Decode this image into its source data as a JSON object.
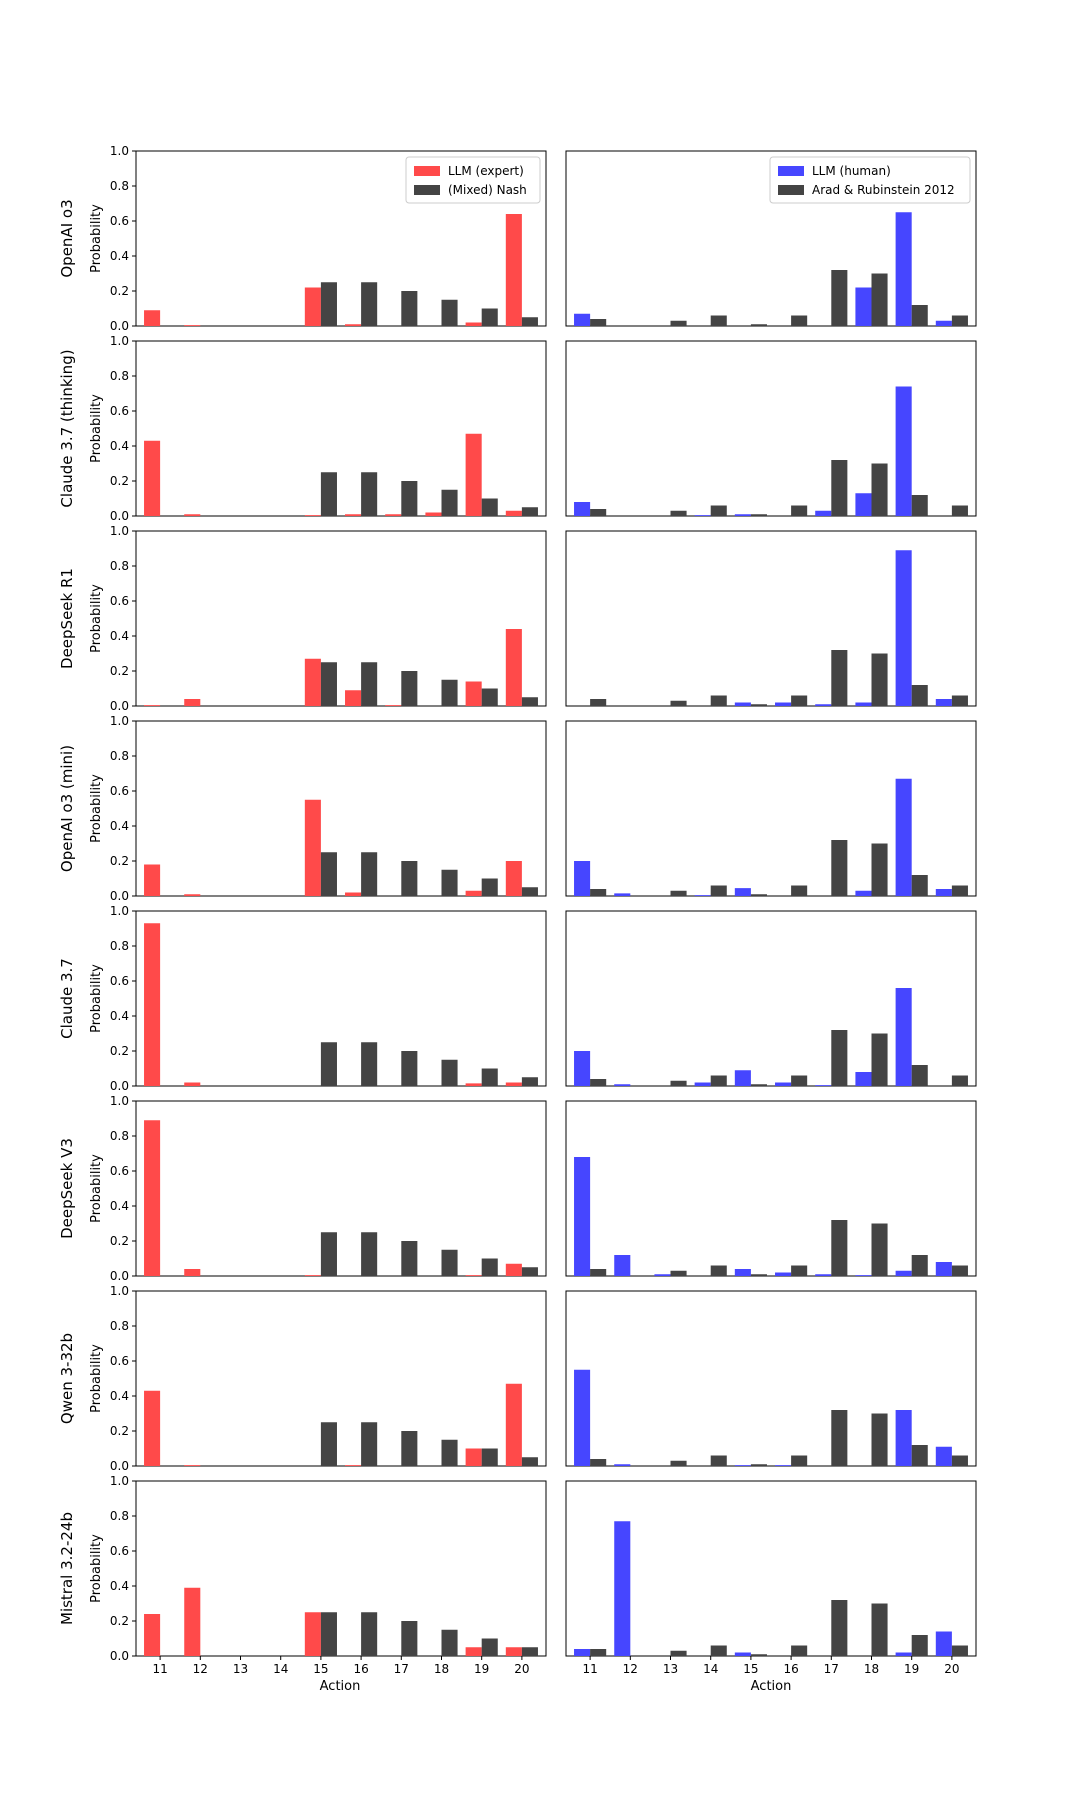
{
  "figure": {
    "shared_xlabel": "Action",
    "shared_ylabel": "Probability",
    "left_legend": [
      "LLM (expert)",
      "(Mixed) Nash"
    ],
    "right_legend": [
      "LLM (human)",
      "Arad & Rubinstein 2012"
    ]
  },
  "colors": {
    "llm_expert": "#ff4a4a",
    "llm_human": "#4646ff",
    "baseline": "#444444"
  },
  "chart_data": [
    {
      "type": "bar",
      "title": "",
      "ylabel": "Probability",
      "xlabel": "",
      "model": "OpenAI o3",
      "ylim": [
        0,
        1
      ],
      "yticks": [
        "0.0",
        "0.2",
        "0.4",
        "0.6",
        "0.8",
        "1.0"
      ],
      "categories": [
        "11",
        "12",
        "13",
        "14",
        "15",
        "16",
        "17",
        "18",
        "19",
        "20"
      ],
      "series": [
        {
          "name": "LLM (expert)",
          "values": [
            0.09,
            0.005,
            0,
            0,
            0.22,
            0.01,
            0,
            0,
            0.02,
            0.64
          ]
        },
        {
          "name": "(Mixed) Nash",
          "values": [
            0,
            0,
            0,
            0,
            0.25,
            0.25,
            0.2,
            0.15,
            0.1,
            0.05
          ]
        }
      ],
      "legend": "top-right"
    },
    {
      "type": "bar",
      "title": "",
      "ylabel": "",
      "xlabel": "",
      "ylim": [
        0,
        1
      ],
      "categories": [
        "11",
        "12",
        "13",
        "14",
        "15",
        "16",
        "17",
        "18",
        "19",
        "20"
      ],
      "series": [
        {
          "name": "LLM (human)",
          "values": [
            0.07,
            0,
            0,
            0,
            0,
            0,
            0,
            0.22,
            0.65,
            0.03
          ]
        },
        {
          "name": "Arad & Rubinstein 2012",
          "values": [
            0.04,
            0,
            0.03,
            0.06,
            0.01,
            0.06,
            0.32,
            0.3,
            0.12,
            0.06
          ]
        }
      ],
      "legend": "top-right"
    },
    {
      "type": "bar",
      "title": "",
      "ylabel": "Probability",
      "xlabel": "",
      "model": "Claude 3.7 (thinking)",
      "ylim": [
        0,
        1
      ],
      "yticks": [
        "0.0",
        "0.2",
        "0.4",
        "0.6",
        "0.8",
        "1.0"
      ],
      "categories": [
        "11",
        "12",
        "13",
        "14",
        "15",
        "16",
        "17",
        "18",
        "19",
        "20"
      ],
      "series": [
        {
          "values": [
            0.43,
            0.01,
            0,
            0,
            0.005,
            0.01,
            0.01,
            0.02,
            0.47,
            0.03
          ]
        },
        {
          "values": [
            0,
            0,
            0,
            0,
            0.25,
            0.25,
            0.2,
            0.15,
            0.1,
            0.05
          ]
        }
      ]
    },
    {
      "type": "bar",
      "title": "",
      "ylabel": "",
      "xlabel": "",
      "ylim": [
        0,
        1
      ],
      "categories": [
        "11",
        "12",
        "13",
        "14",
        "15",
        "16",
        "17",
        "18",
        "19",
        "20"
      ],
      "series": [
        {
          "values": [
            0.08,
            0,
            0,
            0.005,
            0.01,
            0,
            0.03,
            0.13,
            0.74,
            0
          ]
        },
        {
          "values": [
            0.04,
            0,
            0.03,
            0.06,
            0.01,
            0.06,
            0.32,
            0.3,
            0.12,
            0.06
          ]
        }
      ]
    },
    {
      "type": "bar",
      "title": "",
      "ylabel": "Probability",
      "xlabel": "",
      "model": "DeepSeek R1",
      "ylim": [
        0,
        1
      ],
      "yticks": [
        "0.0",
        "0.2",
        "0.4",
        "0.6",
        "0.8",
        "1.0"
      ],
      "categories": [
        "11",
        "12",
        "13",
        "14",
        "15",
        "16",
        "17",
        "18",
        "19",
        "20"
      ],
      "series": [
        {
          "values": [
            0.005,
            0.04,
            0,
            0,
            0.27,
            0.09,
            0.005,
            0,
            0.14,
            0.44
          ]
        },
        {
          "values": [
            0,
            0,
            0,
            0,
            0.25,
            0.25,
            0.2,
            0.15,
            0.1,
            0.05
          ]
        }
      ]
    },
    {
      "type": "bar",
      "title": "",
      "ylabel": "",
      "xlabel": "",
      "ylim": [
        0,
        1
      ],
      "categories": [
        "11",
        "12",
        "13",
        "14",
        "15",
        "16",
        "17",
        "18",
        "19",
        "20"
      ],
      "series": [
        {
          "values": [
            0,
            0,
            0,
            0,
            0.02,
            0.02,
            0.01,
            0.02,
            0.89,
            0.04
          ]
        },
        {
          "values": [
            0.04,
            0,
            0.03,
            0.06,
            0.01,
            0.06,
            0.32,
            0.3,
            0.12,
            0.06
          ]
        }
      ]
    },
    {
      "type": "bar",
      "title": "",
      "ylabel": "Probability",
      "xlabel": "",
      "model": "OpenAI o3 (mini)",
      "ylim": [
        0,
        1
      ],
      "yticks": [
        "0.0",
        "0.2",
        "0.4",
        "0.6",
        "0.8",
        "1.0"
      ],
      "categories": [
        "11",
        "12",
        "13",
        "14",
        "15",
        "16",
        "17",
        "18",
        "19",
        "20"
      ],
      "series": [
        {
          "values": [
            0.18,
            0.01,
            0,
            0,
            0.55,
            0.02,
            0,
            0,
            0.03,
            0.2
          ]
        },
        {
          "values": [
            0,
            0,
            0,
            0,
            0.25,
            0.25,
            0.2,
            0.15,
            0.1,
            0.05
          ]
        }
      ]
    },
    {
      "type": "bar",
      "title": "",
      "ylabel": "",
      "xlabel": "",
      "ylim": [
        0,
        1
      ],
      "categories": [
        "11",
        "12",
        "13",
        "14",
        "15",
        "16",
        "17",
        "18",
        "19",
        "20"
      ],
      "series": [
        {
          "values": [
            0.2,
            0.015,
            0,
            0.005,
            0.045,
            0,
            0,
            0.03,
            0.67,
            0.04
          ]
        },
        {
          "values": [
            0.04,
            0,
            0.03,
            0.06,
            0.01,
            0.06,
            0.32,
            0.3,
            0.12,
            0.06
          ]
        }
      ]
    },
    {
      "type": "bar",
      "title": "",
      "ylabel": "Probability",
      "xlabel": "",
      "model": "Claude 3.7",
      "ylim": [
        0,
        1
      ],
      "yticks": [
        "0.0",
        "0.2",
        "0.4",
        "0.6",
        "0.8",
        "1.0"
      ],
      "categories": [
        "11",
        "12",
        "13",
        "14",
        "15",
        "16",
        "17",
        "18",
        "19",
        "20"
      ],
      "series": [
        {
          "values": [
            0.93,
            0.02,
            0,
            0,
            0,
            0,
            0,
            0,
            0.015,
            0.02
          ]
        },
        {
          "values": [
            0,
            0,
            0,
            0,
            0.25,
            0.25,
            0.2,
            0.15,
            0.1,
            0.05
          ]
        }
      ]
    },
    {
      "type": "bar",
      "title": "",
      "ylabel": "",
      "xlabel": "",
      "ylim": [
        0,
        1
      ],
      "categories": [
        "11",
        "12",
        "13",
        "14",
        "15",
        "16",
        "17",
        "18",
        "19",
        "20"
      ],
      "series": [
        {
          "values": [
            0.2,
            0.01,
            0,
            0.02,
            0.09,
            0.02,
            0.005,
            0.08,
            0.56,
            0
          ]
        },
        {
          "values": [
            0.04,
            0,
            0.03,
            0.06,
            0.01,
            0.06,
            0.32,
            0.3,
            0.12,
            0.06
          ]
        }
      ]
    },
    {
      "type": "bar",
      "title": "",
      "ylabel": "Probability",
      "xlabel": "",
      "model": "DeepSeek V3",
      "ylim": [
        0,
        1
      ],
      "yticks": [
        "0.0",
        "0.2",
        "0.4",
        "0.6",
        "0.8",
        "1.0"
      ],
      "categories": [
        "11",
        "12",
        "13",
        "14",
        "15",
        "16",
        "17",
        "18",
        "19",
        "20"
      ],
      "series": [
        {
          "values": [
            0.89,
            0.04,
            0,
            0,
            0.005,
            0,
            0,
            0,
            0.005,
            0.07
          ]
        },
        {
          "values": [
            0,
            0,
            0,
            0,
            0.25,
            0.25,
            0.2,
            0.15,
            0.1,
            0.05
          ]
        }
      ]
    },
    {
      "type": "bar",
      "title": "",
      "ylabel": "",
      "xlabel": "",
      "ylim": [
        0,
        1
      ],
      "categories": [
        "11",
        "12",
        "13",
        "14",
        "15",
        "16",
        "17",
        "18",
        "19",
        "20"
      ],
      "series": [
        {
          "values": [
            0.68,
            0.12,
            0.01,
            0,
            0.04,
            0.02,
            0.01,
            0.005,
            0.03,
            0.08
          ]
        },
        {
          "values": [
            0.04,
            0,
            0.03,
            0.06,
            0.01,
            0.06,
            0.32,
            0.3,
            0.12,
            0.06
          ]
        }
      ]
    },
    {
      "type": "bar",
      "title": "",
      "ylabel": "Probability",
      "xlabel": "",
      "model": "Qwen 3-32b",
      "ylim": [
        0,
        1
      ],
      "yticks": [
        "0.0",
        "0.2",
        "0.4",
        "0.6",
        "0.8",
        "1.0"
      ],
      "categories": [
        "11",
        "12",
        "13",
        "14",
        "15",
        "16",
        "17",
        "18",
        "19",
        "20"
      ],
      "series": [
        {
          "values": [
            0.43,
            0.005,
            0,
            0,
            0,
            0.005,
            0,
            0,
            0.1,
            0.47
          ]
        },
        {
          "values": [
            0,
            0,
            0,
            0,
            0.25,
            0.25,
            0.2,
            0.15,
            0.1,
            0.05
          ]
        }
      ]
    },
    {
      "type": "bar",
      "title": "",
      "ylabel": "",
      "xlabel": "",
      "ylim": [
        0,
        1
      ],
      "categories": [
        "11",
        "12",
        "13",
        "14",
        "15",
        "16",
        "17",
        "18",
        "19",
        "20"
      ],
      "series": [
        {
          "values": [
            0.55,
            0.01,
            0,
            0,
            0.005,
            0.005,
            0,
            0,
            0.32,
            0.11
          ]
        },
        {
          "values": [
            0.04,
            0,
            0.03,
            0.06,
            0.01,
            0.06,
            0.32,
            0.3,
            0.12,
            0.06
          ]
        }
      ]
    },
    {
      "type": "bar",
      "title": "",
      "ylabel": "Probability",
      "xlabel": "Action",
      "model": "Mistral 3.2-24b",
      "ylim": [
        0,
        1
      ],
      "yticks": [
        "0.0",
        "0.2",
        "0.4",
        "0.6",
        "0.8",
        "1.0"
      ],
      "categories": [
        "11",
        "12",
        "13",
        "14",
        "15",
        "16",
        "17",
        "18",
        "19",
        "20"
      ],
      "series": [
        {
          "values": [
            0.24,
            0.39,
            0,
            0,
            0.25,
            0,
            0,
            0,
            0.05,
            0.05
          ]
        },
        {
          "values": [
            0,
            0,
            0,
            0,
            0.25,
            0.25,
            0.2,
            0.15,
            0.1,
            0.05
          ]
        }
      ]
    },
    {
      "type": "bar",
      "title": "",
      "ylabel": "",
      "xlabel": "Action",
      "ylim": [
        0,
        1
      ],
      "categories": [
        "11",
        "12",
        "13",
        "14",
        "15",
        "16",
        "17",
        "18",
        "19",
        "20"
      ],
      "series": [
        {
          "values": [
            0.04,
            0.77,
            0,
            0,
            0.02,
            0,
            0,
            0,
            0.02,
            0.14
          ]
        },
        {
          "values": [
            0.04,
            0,
            0.03,
            0.06,
            0.01,
            0.06,
            0.32,
            0.3,
            0.12,
            0.06
          ]
        }
      ]
    }
  ]
}
